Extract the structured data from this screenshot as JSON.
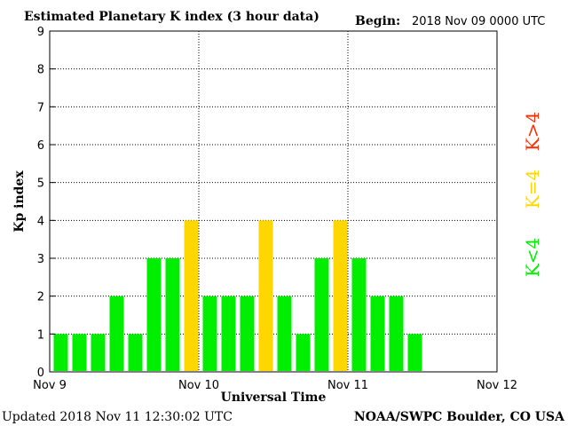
{
  "chart_data": {
    "type": "bar",
    "title": "Estimated Planetary K index (3 hour data)",
    "begin_label": "Begin:",
    "begin_value": "2018 Nov 09 0000 UTC",
    "ylabel": "Kp index",
    "xlabel": "Universal Time",
    "ylim": [
      0,
      9
    ],
    "y_ticks": [
      "0",
      "1",
      "2",
      "3",
      "4",
      "5",
      "6",
      "7",
      "8",
      "9"
    ],
    "x_ticks": [
      "Nov 9",
      "Nov 10",
      "Nov 11",
      "Nov 12"
    ],
    "bars_per_day": 8,
    "total_slots": 24,
    "values": [
      1,
      1,
      1,
      2,
      1,
      3,
      3,
      4,
      2,
      2,
      2,
      4,
      2,
      1,
      3,
      4,
      3,
      2,
      2,
      1
    ],
    "grid": "dotted",
    "colors": {
      "low": "#00ee00",
      "mid": "#ffd700",
      "high": "#ff2a00"
    },
    "legend": {
      "position": "right",
      "entries": [
        {
          "label": "K<4",
          "color": "#00ee00"
        },
        {
          "label": "K=4",
          "color": "#ffd700"
        },
        {
          "label": "K>4",
          "color": "#ff2a00"
        }
      ]
    }
  },
  "footer": {
    "updated": "Updated 2018 Nov 11 12:30:02 UTC",
    "source": "NOAA/SWPC Boulder, CO USA"
  }
}
